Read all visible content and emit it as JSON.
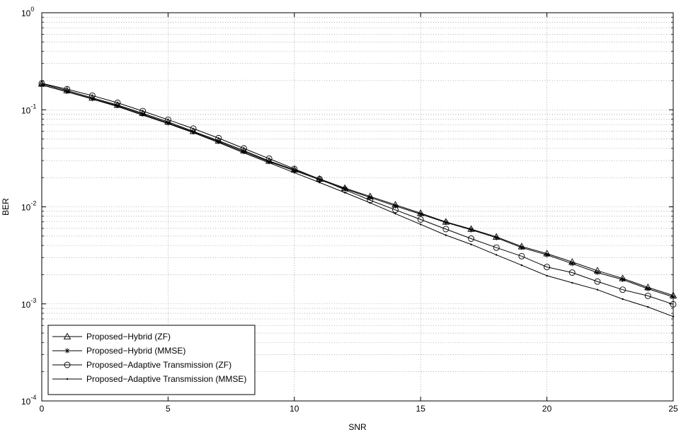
{
  "chart_data": {
    "type": "line",
    "title": "",
    "xlabel": "SNR",
    "ylabel": "BER",
    "xlim": [
      0,
      25
    ],
    "ylim": [
      0.0001,
      1
    ],
    "yscale": "log",
    "grid": true,
    "legend_position": "bottom-left",
    "x_ticks": [
      "0",
      "5",
      "10",
      "15",
      "20",
      "25"
    ],
    "y_ticks": [
      {
        "base": "10",
        "exp": "0",
        "value": 1
      },
      {
        "base": "10",
        "exp": "-1",
        "value": 0.1
      },
      {
        "base": "10",
        "exp": "-2",
        "value": 0.01
      },
      {
        "base": "10",
        "exp": "-3",
        "value": 0.001
      },
      {
        "base": "10",
        "exp": "-4",
        "value": 0.0001
      }
    ],
    "x": [
      0,
      1,
      2,
      3,
      4,
      5,
      6,
      7,
      8,
      9,
      10,
      11,
      12,
      13,
      14,
      15,
      16,
      17,
      18,
      19,
      20,
      21,
      22,
      23,
      24,
      25
    ],
    "series": [
      {
        "name": "Proposed−Hybrid (ZF)",
        "marker": "triangle",
        "values": [
          0.185,
          0.158,
          0.133,
          0.112,
          0.092,
          0.075,
          0.06,
          0.048,
          0.038,
          0.0297,
          0.0241,
          0.0194,
          0.0156,
          0.0128,
          0.0105,
          0.0086,
          0.007,
          0.0059,
          0.0049,
          0.0039,
          0.0033,
          0.0027,
          0.0022,
          0.00183,
          0.00148,
          0.00122
        ]
      },
      {
        "name": "Proposed−Hybrid (MMSE)",
        "marker": "star",
        "values": [
          0.18,
          0.154,
          0.13,
          0.11,
          0.09,
          0.073,
          0.059,
          0.047,
          0.037,
          0.0292,
          0.0236,
          0.019,
          0.0153,
          0.0125,
          0.0102,
          0.0084,
          0.0069,
          0.0058,
          0.0048,
          0.0038,
          0.0032,
          0.0026,
          0.0021,
          0.00178,
          0.00143,
          0.00118
        ]
      },
      {
        "name": "Proposed−Adaptive Transmission (ZF)",
        "marker": "circle",
        "values": [
          0.187,
          0.163,
          0.14,
          0.118,
          0.097,
          0.079,
          0.064,
          0.051,
          0.04,
          0.0314,
          0.0246,
          0.0193,
          0.015,
          0.0117,
          0.0093,
          0.0074,
          0.0059,
          0.0047,
          0.0038,
          0.0031,
          0.0024,
          0.0021,
          0.0017,
          0.0014,
          0.00121,
          0.00099
        ]
      },
      {
        "name": "Proposed−Adaptive Transmission (MMSE)",
        "marker": "dot",
        "values": [
          0.18,
          0.153,
          0.129,
          0.108,
          0.088,
          0.072,
          0.058,
          0.046,
          0.036,
          0.0285,
          0.0225,
          0.0178,
          0.014,
          0.011,
          0.0085,
          0.0066,
          0.0051,
          0.0041,
          0.0032,
          0.0025,
          0.00195,
          0.00165,
          0.0014,
          0.00112,
          0.00093,
          0.00074
        ]
      }
    ]
  }
}
